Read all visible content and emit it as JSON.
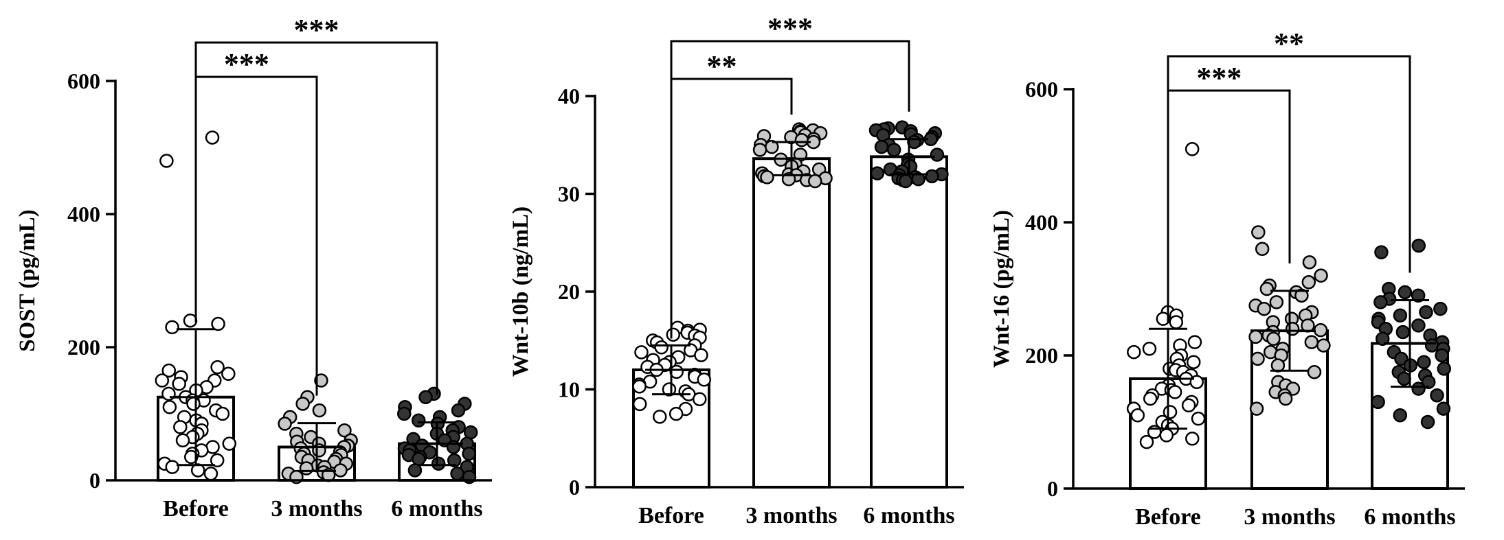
{
  "chart_data": [
    {
      "type": "bar",
      "ylabel": "SOST (pg/mL)",
      "ylim": [
        0,
        600
      ],
      "yticks": [
        0,
        200,
        400,
        600
      ],
      "categories": [
        "Before",
        "3 months",
        "6 months"
      ],
      "series": [
        {
          "values": [
            125,
            50,
            55
          ],
          "sd": [
            102,
            36,
            32
          ]
        }
      ],
      "points": [
        [
          515,
          480,
          240,
          235,
          230,
          170,
          165,
          160,
          155,
          150,
          150,
          145,
          140,
          135,
          130,
          125,
          120,
          120,
          115,
          110,
          105,
          100,
          95,
          90,
          85,
          80,
          75,
          70,
          65,
          60,
          55,
          50,
          45,
          40,
          35,
          30,
          25,
          20,
          15,
          10
        ],
        [
          150,
          125,
          115,
          105,
          95,
          85,
          75,
          70,
          65,
          60,
          58,
          55,
          52,
          50,
          48,
          45,
          42,
          40,
          38,
          35,
          32,
          30,
          28,
          25,
          22,
          20,
          18,
          15,
          12,
          10,
          8,
          5
        ],
        [
          130,
          125,
          115,
          110,
          105,
          100,
          95,
          90,
          85,
          80,
          75,
          72,
          70,
          65,
          62,
          60,
          55,
          52,
          50,
          48,
          45,
          42,
          40,
          38,
          35,
          32,
          30,
          25,
          20,
          15,
          10,
          5
        ]
      ],
      "point_colors": [
        "#ffffff",
        "#c8c8c8",
        "#333333"
      ],
      "significance": [
        {
          "from": "Before",
          "to": "3 months",
          "label": "***"
        },
        {
          "from": "Before",
          "to": "6 months",
          "label": "***"
        }
      ],
      "grid": false
    },
    {
      "type": "bar",
      "ylabel": "Wnt-10b (ng/mL)",
      "ylim": [
        0,
        40
      ],
      "yticks": [
        0,
        10,
        20,
        30,
        40
      ],
      "categories": [
        "Before",
        "3 months",
        "6 months"
      ],
      "series": [
        {
          "values": [
            12,
            33.6,
            33.8
          ],
          "sd": [
            2.5,
            1.7,
            1.8
          ]
        }
      ],
      "points": [
        [
          16.3,
          16.1,
          16,
          15.8,
          15.6,
          15.5,
          15.3,
          15,
          14.8,
          14.5,
          14.3,
          14,
          13.8,
          13.5,
          13.3,
          13,
          12.8,
          12.5,
          12.3,
          12,
          11.8,
          11.5,
          11.3,
          11,
          10.8,
          10.5,
          10.3,
          10,
          9.8,
          9.5,
          9,
          8.5,
          8,
          7.5,
          7.2
        ],
        [
          36.6,
          36.5,
          36.4,
          36.3,
          36.2,
          36,
          35.9,
          35.8,
          35.6,
          35.5,
          35.3,
          35,
          34.8,
          34.5,
          34,
          33.5,
          33,
          32.8,
          32.5,
          32.3,
          32.1,
          32,
          31.9,
          31.8,
          31.7,
          31.6,
          31.5,
          31.4,
          31.3
        ],
        [
          36.8,
          36.7,
          36.6,
          36.5,
          36.4,
          36.2,
          36.1,
          36,
          35.8,
          35.6,
          35.5,
          35.3,
          35,
          34.8,
          34.5,
          34,
          33.5,
          33,
          32.8,
          32.5,
          32.3,
          32.1,
          32,
          31.9,
          31.8,
          31.7,
          31.6,
          31.5,
          31.4,
          31.3
        ]
      ],
      "point_colors": [
        "#ffffff",
        "#c8c8c8",
        "#333333"
      ],
      "significance": [
        {
          "from": "Before",
          "to": "3 months",
          "label": "**"
        },
        {
          "from": "Before",
          "to": "6 months",
          "label": "***"
        }
      ],
      "grid": false
    },
    {
      "type": "bar",
      "ylabel": "Wnt-16 (pg/mL)",
      "ylim": [
        0,
        600
      ],
      "yticks": [
        0,
        200,
        400,
        600
      ],
      "categories": [
        "Before",
        "3 months",
        "6 months"
      ],
      "series": [
        {
          "values": [
            165,
            237,
            218
          ],
          "sd": [
            75,
            60,
            65
          ]
        }
      ],
      "points": [
        [
          510,
          265,
          260,
          255,
          250,
          220,
          215,
          210,
          205,
          200,
          195,
          190,
          185,
          180,
          178,
          175,
          170,
          165,
          160,
          155,
          150,
          148,
          145,
          140,
          135,
          130,
          125,
          120,
          115,
          110,
          105,
          100,
          95,
          90,
          85,
          80,
          75,
          70
        ],
        [
          385,
          360,
          340,
          320,
          310,
          305,
          300,
          295,
          290,
          280,
          275,
          270,
          265,
          260,
          255,
          250,
          245,
          240,
          238,
          235,
          230,
          228,
          225,
          220,
          215,
          210,
          205,
          200,
          195,
          185,
          175,
          160,
          155,
          150,
          145,
          140,
          135,
          120
        ],
        [
          365,
          355,
          300,
          295,
          290,
          285,
          280,
          270,
          265,
          260,
          255,
          250,
          245,
          240,
          235,
          230,
          225,
          220,
          215,
          210,
          205,
          200,
          195,
          190,
          185,
          180,
          175,
          170,
          165,
          160,
          150,
          140,
          130,
          120,
          110,
          100
        ]
      ],
      "point_colors": [
        "#ffffff",
        "#c8c8c8",
        "#333333"
      ],
      "significance": [
        {
          "from": "Before",
          "to": "3 months",
          "label": "***"
        },
        {
          "from": "Before",
          "to": "6 months",
          "label": "**"
        }
      ],
      "grid": false
    }
  ]
}
